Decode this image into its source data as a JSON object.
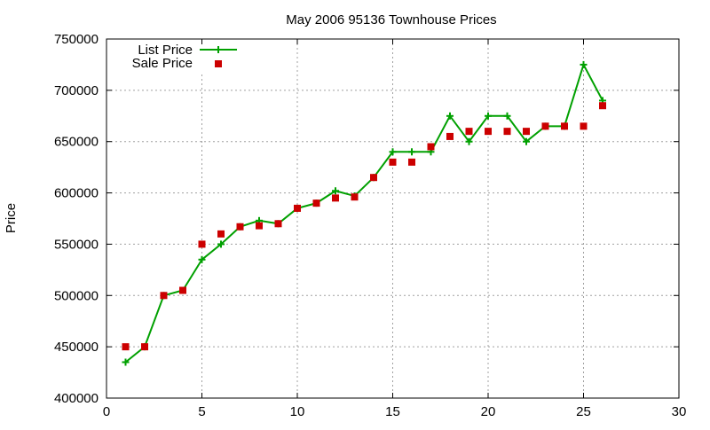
{
  "chart_data": {
    "type": "scatter",
    "title": "May 2006 95136 Townhouse Prices",
    "xlabel": "",
    "ylabel": "Price",
    "xlim": [
      0,
      30
    ],
    "ylim": [
      400000,
      750000
    ],
    "x_ticks": [
      0,
      5,
      10,
      15,
      20,
      25,
      30
    ],
    "y_ticks": [
      400000,
      450000,
      500000,
      550000,
      600000,
      650000,
      700000,
      750000
    ],
    "grid": true,
    "legend_position": "top-left",
    "series": [
      {
        "name": "List Price",
        "style": "line-with-plus-markers",
        "color": "#00a000",
        "x": [
          1,
          2,
          3,
          4,
          5,
          6,
          7,
          8,
          9,
          10,
          11,
          12,
          13,
          14,
          15,
          16,
          17,
          18,
          19,
          20,
          21,
          22,
          23,
          24,
          25,
          26
        ],
        "y": [
          435000,
          450000,
          500000,
          505000,
          535000,
          550000,
          567000,
          573000,
          570000,
          585000,
          590000,
          602000,
          597000,
          615000,
          640000,
          640000,
          640000,
          675000,
          650000,
          675000,
          675000,
          650000,
          665000,
          665000,
          725000,
          690000
        ]
      },
      {
        "name": "Sale Price",
        "style": "square-markers",
        "color": "#cc0000",
        "x": [
          1,
          2,
          3,
          4,
          5,
          6,
          7,
          8,
          9,
          10,
          11,
          12,
          13,
          14,
          15,
          16,
          17,
          18,
          19,
          20,
          21,
          22,
          23,
          24,
          25,
          26
        ],
        "y": [
          450000,
          450000,
          500000,
          505000,
          550000,
          560000,
          567000,
          568000,
          570000,
          585000,
          590000,
          595000,
          596000,
          615000,
          630000,
          630000,
          645000,
          655000,
          660000,
          660000,
          660000,
          660000,
          665000,
          665000,
          665000,
          685000
        ]
      }
    ]
  }
}
